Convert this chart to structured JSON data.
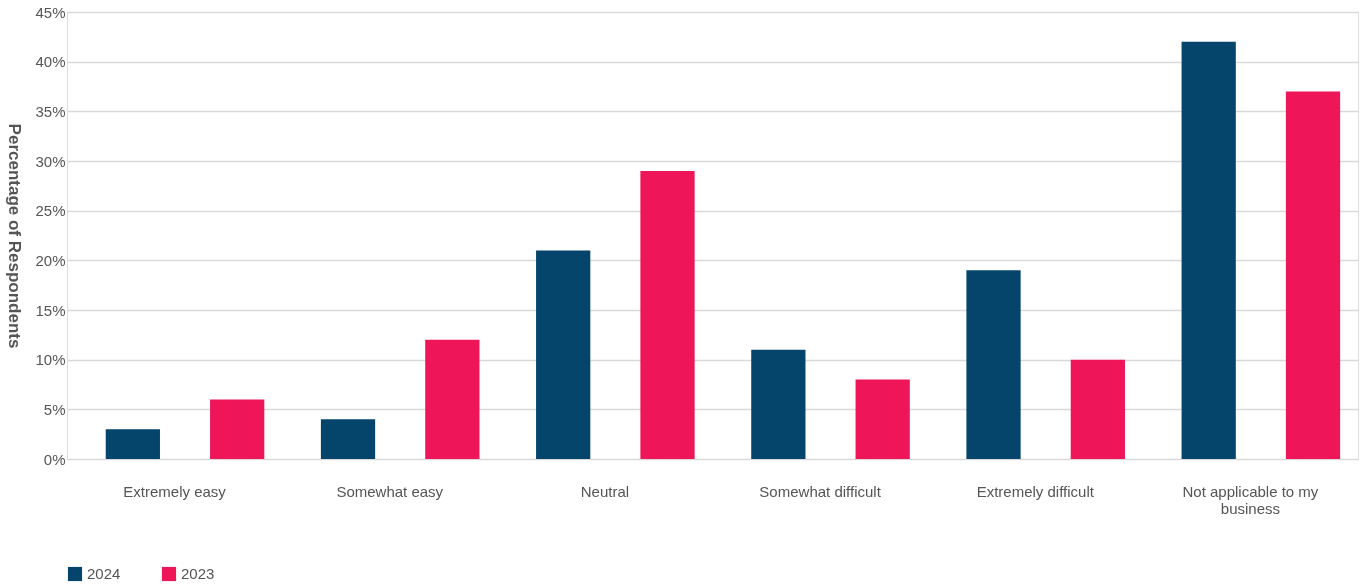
{
  "chart_data": {
    "type": "bar",
    "ylabel": "Percentage of Respondents",
    "categories": [
      "Extremely easy",
      "Somewhat easy",
      "Neutral",
      "Somewhat difficult",
      "Extremely difficult",
      "Not applicable to my business"
    ],
    "series": [
      {
        "name": "2024",
        "color": "#06456b",
        "values": [
          3,
          4,
          21,
          11,
          19,
          42
        ]
      },
      {
        "name": "2023",
        "color": "#ee1558",
        "values": [
          6,
          12,
          29,
          8,
          10,
          37
        ]
      }
    ],
    "ylim": [
      0,
      45
    ],
    "yticks": [
      {
        "value": 0,
        "label": "0%"
      },
      {
        "value": 5,
        "label": "5%"
      },
      {
        "value": 10,
        "label": "10%"
      },
      {
        "value": 15,
        "label": "15%"
      },
      {
        "value": 20,
        "label": "20%"
      },
      {
        "value": 25,
        "label": "25%"
      },
      {
        "value": 30,
        "label": "30%"
      },
      {
        "value": 35,
        "label": "35%"
      },
      {
        "value": 40,
        "label": "40%"
      },
      {
        "value": 45,
        "label": "45%"
      }
    ],
    "grid": "y",
    "legend": "bottom"
  }
}
